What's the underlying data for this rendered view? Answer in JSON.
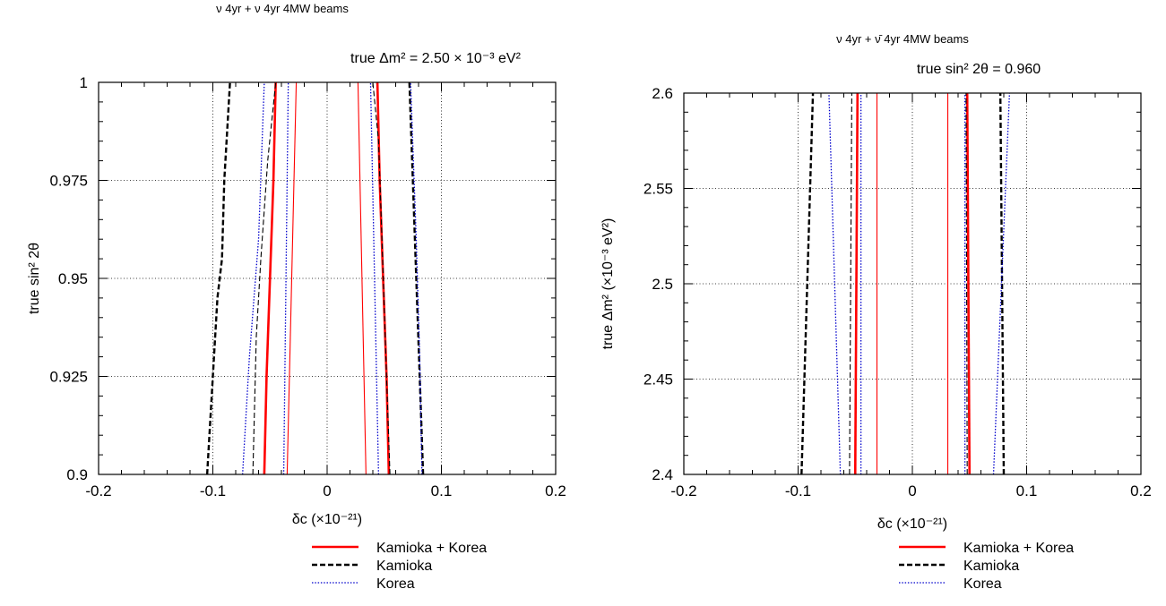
{
  "chart_data": [
    {
      "type": "line",
      "title": "ν 4yr + ν 4yr 4MW beams",
      "subtitle": "true Δm² = 2.50 × 10⁻³ eV²",
      "xlabel": "δc  (×10⁻²¹)",
      "ylabel": "true sin² 2θ",
      "xlim": [
        -0.2,
        0.2
      ],
      "ylim": [
        0.9,
        1.0
      ],
      "x_ticks": [
        -0.2,
        -0.1,
        0,
        0.1,
        0.2
      ],
      "x_tick_labels": [
        "-0.2",
        "-0.1",
        "0",
        "0.1",
        "0.2"
      ],
      "y_ticks": [
        0.9,
        0.925,
        0.95,
        0.975,
        1.0
      ],
      "y_tick_labels": [
        "0.9",
        "0.925",
        "0.95",
        "0.975",
        "1"
      ],
      "grid": true,
      "legend": "below",
      "series": [
        {
          "name": "Kamioka + Korea",
          "color": "#ff0000",
          "style": "solid",
          "width": 2.6,
          "points": [
            [
              -0.055,
              0.9
            ],
            [
              -0.053,
              0.925
            ],
            [
              -0.05,
              0.95
            ],
            [
              -0.047,
              0.975
            ],
            [
              -0.045,
              1.0
            ]
          ]
        },
        {
          "color": "#ff0000",
          "style": "solid",
          "width": 2.6,
          "points": [
            [
              0.054,
              0.9
            ],
            [
              0.052,
              0.925
            ],
            [
              0.049,
              0.95
            ],
            [
              0.046,
              0.975
            ],
            [
              0.044,
              1.0
            ]
          ]
        },
        {
          "color": "#ff0000",
          "style": "solid",
          "width": 1.1,
          "points": [
            [
              -0.035,
              0.9
            ],
            [
              -0.027,
              1.0
            ]
          ]
        },
        {
          "color": "#ff0000",
          "style": "solid",
          "width": 1.1,
          "points": [
            [
              0.034,
              0.9
            ],
            [
              0.027,
              1.0
            ]
          ]
        },
        {
          "name": "Kamioka",
          "color": "#000000",
          "style": "dashed",
          "width": 2.4,
          "points": [
            [
              -0.105,
              0.9
            ],
            [
              -0.1,
              0.925
            ],
            [
              -0.096,
              0.945
            ],
            [
              -0.092,
              0.955
            ],
            [
              -0.09,
              0.975
            ],
            [
              -0.085,
              1.0
            ]
          ]
        },
        {
          "color": "#000000",
          "style": "dashed",
          "width": 2.4,
          "points": [
            [
              0.084,
              0.9
            ],
            [
              0.081,
              0.925
            ],
            [
              0.078,
              0.95
            ],
            [
              0.075,
              0.975
            ],
            [
              0.072,
              1.0
            ]
          ]
        },
        {
          "color": "#000000",
          "style": "dashed",
          "width": 1.1,
          "points": [
            [
              -0.065,
              0.9
            ],
            [
              -0.062,
              0.935
            ],
            [
              -0.058,
              0.955
            ],
            [
              -0.052,
              0.98
            ],
            [
              -0.045,
              1.0
            ]
          ]
        },
        {
          "color": "#000000",
          "style": "dashed",
          "width": 1.1,
          "points": [
            [
              0.055,
              0.9
            ],
            [
              0.052,
              0.925
            ],
            [
              0.048,
              0.96
            ],
            [
              0.045,
              0.985
            ],
            [
              0.04,
              1.0
            ]
          ]
        },
        {
          "name": "Korea",
          "color": "#0000cc",
          "style": "dotted",
          "width": 1.3,
          "points": [
            [
              -0.074,
              0.9
            ],
            [
              -0.068,
              0.93
            ],
            [
              -0.06,
              0.96
            ],
            [
              -0.055,
              1.0
            ]
          ]
        },
        {
          "color": "#0000cc",
          "style": "dotted",
          "width": 1.3,
          "points": [
            [
              0.083,
              0.9
            ],
            [
              0.081,
              0.93
            ],
            [
              0.078,
              0.96
            ],
            [
              0.073,
              1.0
            ]
          ]
        },
        {
          "color": "#0000cc",
          "style": "dotted",
          "width": 1.3,
          "points": [
            [
              -0.038,
              0.9
            ],
            [
              -0.034,
              1.0
            ]
          ]
        },
        {
          "color": "#0000cc",
          "style": "dotted",
          "width": 1.3,
          "points": [
            [
              0.045,
              0.9
            ],
            [
              0.038,
              1.0
            ]
          ]
        }
      ]
    },
    {
      "type": "line",
      "title": "ν 4yr + ν̄ 4yr 4MW beams",
      "subtitle": "true sin² 2θ = 0.960",
      "xlabel": "δc  (×10⁻²¹)",
      "ylabel": "true Δm² (×10⁻³ eV²)",
      "xlim": [
        -0.2,
        0.2
      ],
      "ylim": [
        2.4,
        2.6
      ],
      "x_ticks": [
        -0.2,
        -0.1,
        0,
        0.1,
        0.2
      ],
      "x_tick_labels": [
        "-0.2",
        "-0.1",
        "0",
        "0.1",
        "0.2"
      ],
      "y_ticks": [
        2.4,
        2.45,
        2.5,
        2.55,
        2.6
      ],
      "y_tick_labels": [
        "2.4",
        "2.45",
        "2.5",
        "2.55",
        "2.6"
      ],
      "grid": true,
      "legend": "below",
      "series": [
        {
          "name": "Kamioka + Korea",
          "color": "#ff0000",
          "style": "solid",
          "width": 2.6,
          "points": [
            [
              -0.05,
              2.4
            ],
            [
              -0.048,
              2.6
            ]
          ]
        },
        {
          "color": "#ff0000",
          "style": "solid",
          "width": 2.6,
          "points": [
            [
              0.05,
              2.4
            ],
            [
              0.048,
              2.6
            ]
          ]
        },
        {
          "color": "#ff0000",
          "style": "solid",
          "width": 1.1,
          "points": [
            [
              -0.031,
              2.4
            ],
            [
              -0.031,
              2.6
            ]
          ]
        },
        {
          "color": "#ff0000",
          "style": "solid",
          "width": 1.1,
          "points": [
            [
              0.031,
              2.4
            ],
            [
              0.031,
              2.6
            ]
          ]
        },
        {
          "name": "Kamioka",
          "color": "#000000",
          "style": "dashed",
          "width": 2.4,
          "points": [
            [
              -0.097,
              2.4
            ],
            [
              -0.087,
              2.6
            ]
          ]
        },
        {
          "color": "#000000",
          "style": "dashed",
          "width": 2.4,
          "points": [
            [
              0.08,
              2.4
            ],
            [
              0.077,
              2.6
            ]
          ]
        },
        {
          "color": "#000000",
          "style": "dashed",
          "width": 1.1,
          "points": [
            [
              -0.055,
              2.4
            ],
            [
              -0.053,
              2.6
            ]
          ]
        },
        {
          "color": "#000000",
          "style": "dashed",
          "width": 1.1,
          "points": [
            [
              0.048,
              2.4
            ],
            [
              0.047,
              2.6
            ]
          ]
        },
        {
          "name": "Korea",
          "color": "#0000cc",
          "style": "dotted",
          "width": 1.3,
          "points": [
            [
              -0.063,
              2.4
            ],
            [
              -0.073,
              2.6
            ]
          ]
        },
        {
          "color": "#0000cc",
          "style": "dotted",
          "width": 1.3,
          "points": [
            [
              0.071,
              2.4
            ],
            [
              0.085,
              2.6
            ]
          ]
        },
        {
          "color": "#0000cc",
          "style": "dotted",
          "width": 1.3,
          "points": [
            [
              -0.045,
              2.4
            ],
            [
              -0.045,
              2.6
            ]
          ]
        },
        {
          "color": "#0000cc",
          "style": "dotted",
          "width": 1.3,
          "points": [
            [
              0.046,
              2.4
            ],
            [
              0.046,
              2.6
            ]
          ]
        }
      ]
    }
  ],
  "legend": {
    "items": [
      {
        "label": "Kamioka + Korea",
        "color": "#ff0000",
        "style": "solid"
      },
      {
        "label": "Kamioka",
        "color": "#000000",
        "style": "dashed"
      },
      {
        "label": "Korea",
        "color": "#0000cc",
        "style": "dotted"
      }
    ]
  }
}
